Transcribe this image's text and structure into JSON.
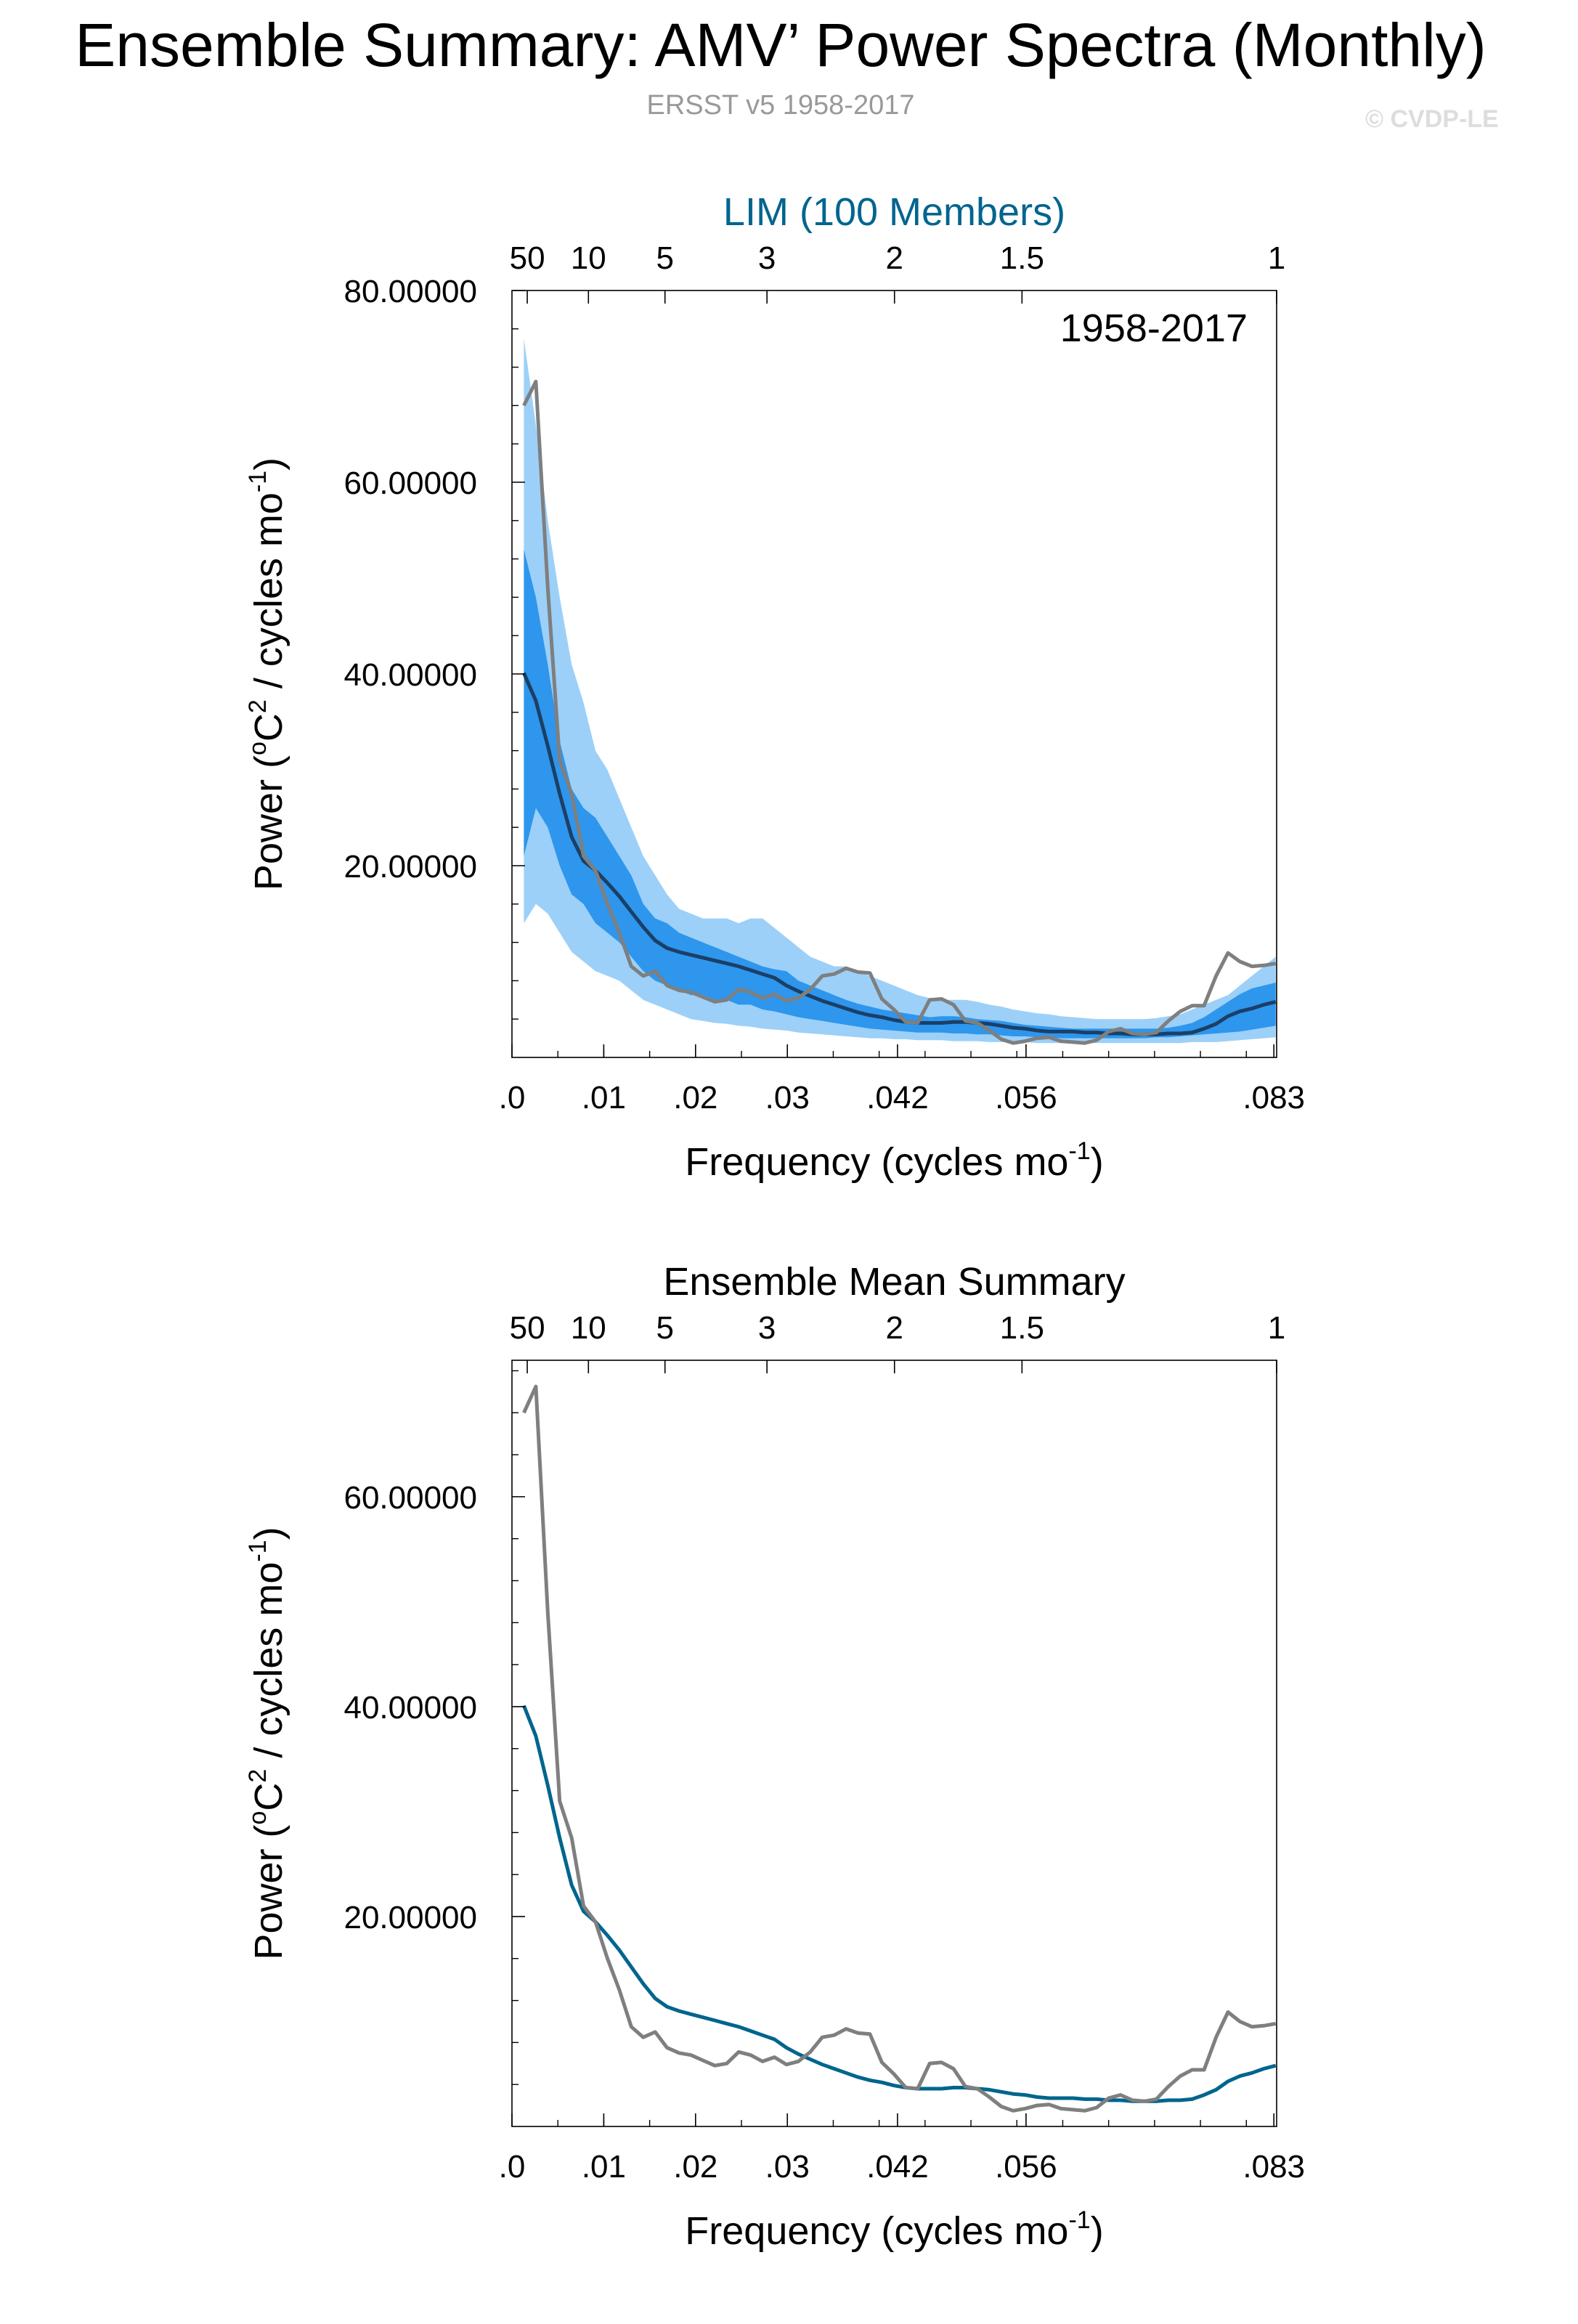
{
  "header": {
    "title": "Ensemble Summary: AMV’ Power Spectra (Monthly)",
    "subtitle": "ERSST v5 1958-2017",
    "copyright": "© CVDP-LE"
  },
  "colors": {
    "observed_line": "#7f7f7f",
    "ensemble_mean_top": "#1b3f66",
    "ensemble_mean_bottom": "#00658e",
    "band_outer": "#9cd0f8",
    "band_inner": "#2e96ec",
    "lim_title": "#00658e"
  },
  "chart_data": [
    {
      "type": "line",
      "title": "LIM (100 Members)",
      "period_label": "1958-2017",
      "xlabel": "Frequency (cycles mo-1)",
      "ylabel": "Power (oC2 / cycles mo-1)",
      "xlim": [
        0.0,
        0.0833
      ],
      "ylim": [
        0,
        80
      ],
      "x_tick_values": [
        0.0,
        0.01,
        0.02,
        0.03,
        0.042,
        0.056,
        0.083
      ],
      "x_tick_labels": [
        ".0",
        ".01",
        ".02",
        ".03",
        ".042",
        ".056",
        ".083"
      ],
      "y_tick_values": [
        20,
        40,
        60,
        80
      ],
      "y_tick_labels": [
        "20.00000",
        "40.00000",
        "60.00000",
        "80.00000"
      ],
      "top_axis_label_freqs": [
        0.001667,
        0.00833,
        0.01667,
        0.02778,
        0.04167,
        0.05556,
        0.0833
      ],
      "top_axis_labels": [
        "50",
        "10",
        "5",
        "3",
        "2",
        "1.5",
        "1"
      ],
      "x": [
        0.0013,
        0.0026,
        0.0039,
        0.0052,
        0.0065,
        0.0078,
        0.0091,
        0.0104,
        0.0117,
        0.013,
        0.0143,
        0.0156,
        0.0169,
        0.0182,
        0.0195,
        0.0208,
        0.0221,
        0.0234,
        0.0247,
        0.026,
        0.0273,
        0.0286,
        0.0299,
        0.0312,
        0.0325,
        0.0338,
        0.0351,
        0.0364,
        0.0377,
        0.039,
        0.0403,
        0.0416,
        0.0429,
        0.0442,
        0.0455,
        0.0468,
        0.0481,
        0.0494,
        0.0507,
        0.052,
        0.0533,
        0.0546,
        0.0559,
        0.0572,
        0.0585,
        0.0598,
        0.0611,
        0.0624,
        0.0637,
        0.065,
        0.0663,
        0.0676,
        0.0689,
        0.0702,
        0.0715,
        0.0728,
        0.0741,
        0.0754,
        0.0767,
        0.078,
        0.0793,
        0.0806,
        0.0819,
        0.0832
      ],
      "series": [
        {
          "role": "band_outer",
          "lower": [
            14,
            16,
            15,
            13,
            11,
            10,
            9,
            8.5,
            8,
            7,
            6,
            5.5,
            5,
            4.5,
            4,
            3.8,
            3.6,
            3.5,
            3.3,
            3.2,
            3,
            2.9,
            2.8,
            2.6,
            2.5,
            2.4,
            2.3,
            2.2,
            2.1,
            2,
            2,
            1.9,
            1.9,
            1.8,
            1.8,
            1.8,
            1.7,
            1.7,
            1.7,
            1.6,
            1.6,
            1.6,
            1.6,
            1.5,
            1.5,
            1.5,
            1.5,
            1.5,
            1.5,
            1.5,
            1.5,
            1.5,
            1.5,
            1.5,
            1.5,
            1.5,
            1.6,
            1.6,
            1.6,
            1.7,
            1.8,
            1.9,
            2,
            2.1
          ],
          "upper": [
            75,
            66,
            56,
            48,
            41,
            37,
            32,
            30,
            27,
            24,
            21,
            19,
            17,
            15.5,
            15,
            14.5,
            14.5,
            14.5,
            14,
            14.5,
            14.5,
            13.5,
            12.5,
            11.5,
            10.5,
            10,
            9.5,
            9.5,
            9,
            8.5,
            8,
            7.5,
            7,
            6.5,
            6.2,
            6,
            6,
            6,
            5.8,
            5.5,
            5.3,
            5,
            4.8,
            4.6,
            4.5,
            4.3,
            4.2,
            4.1,
            4,
            4,
            4,
            4,
            4,
            4.1,
            4.3,
            4.5,
            5,
            5.5,
            6,
            6.5,
            7.5,
            8.5,
            9.5,
            10.5
          ]
        },
        {
          "role": "band_inner",
          "lower": [
            21,
            26,
            24,
            20,
            17,
            16,
            14,
            13,
            12,
            10.5,
            9,
            8,
            7.5,
            7,
            6.5,
            6.5,
            6,
            6,
            5.5,
            5.5,
            5,
            4.8,
            4.5,
            4.2,
            4,
            3.8,
            3.6,
            3.4,
            3.2,
            3,
            2.9,
            2.8,
            2.7,
            2.6,
            2.6,
            2.6,
            2.5,
            2.5,
            2.4,
            2.4,
            2.3,
            2.2,
            2.2,
            2.1,
            2.1,
            2,
            2,
            2,
            2,
            2,
            2,
            2,
            2,
            2.1,
            2.1,
            2.2,
            2.3,
            2.4,
            2.5,
            2.6,
            2.7,
            2.9,
            3.1,
            3.3
          ],
          "upper": [
            53,
            48,
            41,
            33,
            28,
            26,
            25,
            23,
            21,
            19,
            16,
            14.5,
            14,
            13,
            12.5,
            12,
            11.5,
            11,
            10.5,
            10,
            9.5,
            9.2,
            9,
            8,
            7.5,
            7,
            6.5,
            6,
            5.6,
            5.3,
            5,
            4.8,
            4.6,
            4.4,
            4.2,
            4.3,
            4.3,
            4.2,
            4,
            3.9,
            3.8,
            3.6,
            3.4,
            3.3,
            3.2,
            3.1,
            3,
            3,
            3,
            3,
            3,
            3,
            3,
            3,
            3.1,
            3.3,
            3.6,
            4.2,
            5,
            5.8,
            6.6,
            7.2,
            7.5,
            7.8
          ]
        },
        {
          "role": "ensemble_mean",
          "values": [
            40.1,
            37.2,
            32.5,
            27.5,
            23,
            20.5,
            19.5,
            18.2,
            16.8,
            15.2,
            13.6,
            12.2,
            11.4,
            11,
            10.7,
            10.4,
            10.1,
            9.8,
            9.5,
            9.1,
            8.7,
            8.3,
            7.5,
            6.9,
            6.4,
            5.9,
            5.5,
            5.1,
            4.7,
            4.4,
            4.2,
            3.9,
            3.7,
            3.6,
            3.6,
            3.6,
            3.7,
            3.7,
            3.6,
            3.5,
            3.3,
            3.1,
            3,
            2.8,
            2.7,
            2.7,
            2.7,
            2.6,
            2.6,
            2.5,
            2.5,
            2.4,
            2.4,
            2.4,
            2.5,
            2.5,
            2.6,
            3,
            3.5,
            4.3,
            4.8,
            5.1,
            5.5,
            5.8
          ]
        },
        {
          "role": "observed",
          "values": [
            68,
            70.5,
            49,
            31,
            27.5,
            21,
            19.5,
            16,
            13,
            9.5,
            8.5,
            9,
            7.5,
            7,
            6.8,
            6.3,
            5.8,
            6,
            7.1,
            6.8,
            6.2,
            6.6,
            5.9,
            6.2,
            7.1,
            8.5,
            8.7,
            9.3,
            8.9,
            8.8,
            6.1,
            5,
            3.7,
            3.6,
            6,
            6.1,
            5.5,
            3.8,
            3.6,
            2.8,
            1.9,
            1.5,
            1.7,
            2,
            2.1,
            1.7,
            1.6,
            1.5,
            1.8,
            2.7,
            3,
            2.5,
            2.4,
            2.6,
            3.8,
            4.8,
            5.4,
            5.4,
            8.5,
            10.9,
            10,
            9.5,
            9.6,
            9.8
          ]
        }
      ]
    },
    {
      "type": "line",
      "title": "Ensemble Mean Summary",
      "xlabel": "Frequency (cycles mo-1)",
      "ylabel": "Power (oC2 / cycles mo-1)",
      "xlim": [
        0.0,
        0.0833
      ],
      "ylim": [
        0,
        73
      ],
      "x_tick_values": [
        0.0,
        0.01,
        0.02,
        0.03,
        0.042,
        0.056,
        0.083
      ],
      "x_tick_labels": [
        ".0",
        ".01",
        ".02",
        ".03",
        ".042",
        ".056",
        ".083"
      ],
      "y_tick_values": [
        20,
        40,
        60
      ],
      "y_tick_labels": [
        "20.00000",
        "40.00000",
        "60.00000"
      ],
      "top_axis_label_freqs": [
        0.001667,
        0.00833,
        0.01667,
        0.02778,
        0.04167,
        0.05556,
        0.0833
      ],
      "top_axis_labels": [
        "50",
        "10",
        "5",
        "3",
        "2",
        "1.5",
        "1"
      ],
      "series_ref": "same x and line values as panel 1: ensemble_mean and observed"
    }
  ],
  "text": {
    "xlabel_main": "Frequency (cycles mo",
    "xlabel_sup": "-1",
    "xlabel_end": ")",
    "ylabel_a": "Power (",
    "ylabel_sup1": "o",
    "ylabel_b": "C",
    "ylabel_sup2": "2",
    "ylabel_c": " / cycles mo",
    "ylabel_sup3": "-1",
    "ylabel_d": ")"
  }
}
